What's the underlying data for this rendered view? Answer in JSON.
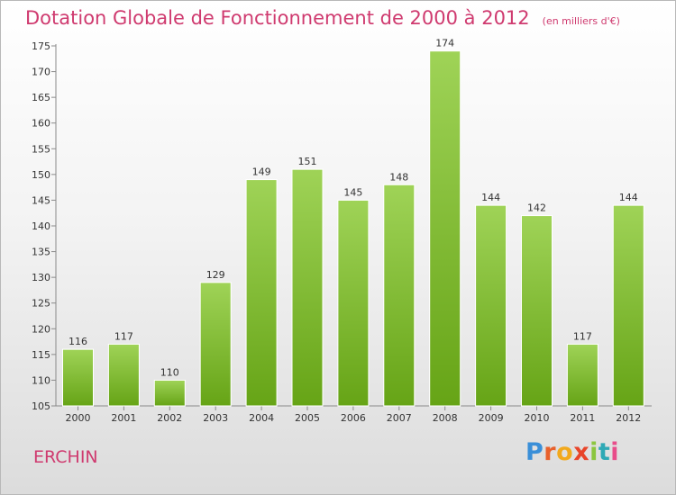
{
  "header": {
    "title": "Dotation Globale de Fonctionnement de 2000 à 2012",
    "subtitle": "(en milliers d'€)"
  },
  "footer": {
    "place": "ERCHIN",
    "logo_text": "Proxiti",
    "logo_colors": [
      "#3a8fd8",
      "#e8612c",
      "#f2a91d",
      "#e8452a",
      "#8cc63f",
      "#2fa9b5",
      "#e84d8a"
    ]
  },
  "colors": {
    "accent": "#cf3a6f",
    "bar_light": "#9fd357",
    "bar_dark": "#66a416"
  },
  "chart_data": {
    "type": "bar",
    "title": "Dotation Globale de Fonctionnement de 2000 à 2012",
    "subtitle": "(en milliers d'€)",
    "categories": [
      "2000",
      "2001",
      "2002",
      "2003",
      "2004",
      "2005",
      "2006",
      "2007",
      "2008",
      "2009",
      "2010",
      "2011",
      "2012"
    ],
    "values": [
      116,
      117,
      110,
      129,
      149,
      151,
      145,
      148,
      174,
      144,
      142,
      117,
      144
    ],
    "ylim": [
      105,
      175
    ],
    "yticks": [
      105,
      110,
      115,
      120,
      125,
      130,
      135,
      140,
      145,
      150,
      155,
      160,
      165,
      170,
      175
    ],
    "xlabel": "",
    "ylabel": "",
    "grid": false,
    "data_labels": true
  }
}
